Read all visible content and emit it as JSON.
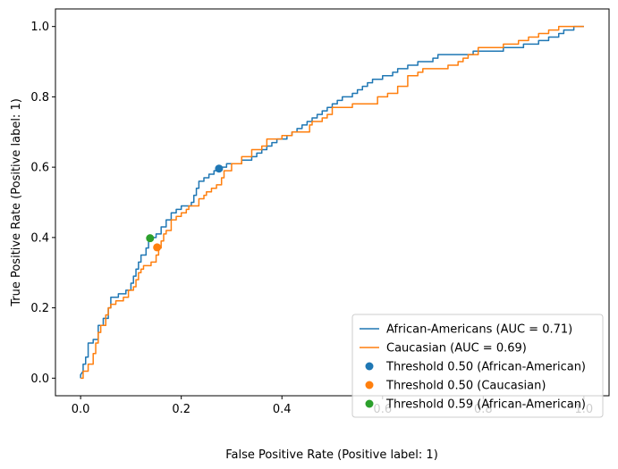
{
  "chart_data": {
    "type": "line",
    "xlabel": "False Positive Rate (Positive label: 1)",
    "ylabel": "True Positive Rate (Positive label: 1)",
    "xlim": [
      -0.05,
      1.05
    ],
    "ylim": [
      -0.05,
      1.05
    ],
    "xticks": [
      "0.0",
      "0.2",
      "0.4",
      "0.6",
      "0.8",
      "1.0"
    ],
    "yticks": [
      "0.0",
      "0.2",
      "0.4",
      "0.6",
      "0.8",
      "1.0"
    ],
    "legend_position": "lower-right",
    "grid": false,
    "series": [
      {
        "name": "African-Americans (AUC = 0.71)",
        "kind": "roc-line",
        "color": "#1f77b4",
        "points": [
          [
            0,
            0
          ],
          [
            0,
            0.01
          ],
          [
            0.005,
            0.02
          ],
          [
            0.005,
            0.04
          ],
          [
            0.01,
            0.04
          ],
          [
            0.01,
            0.06
          ],
          [
            0.015,
            0.06
          ],
          [
            0.015,
            0.1
          ],
          [
            0.025,
            0.1
          ],
          [
            0.025,
            0.11
          ],
          [
            0.035,
            0.11
          ],
          [
            0.035,
            0.15
          ],
          [
            0.045,
            0.15
          ],
          [
            0.045,
            0.17
          ],
          [
            0.055,
            0.17
          ],
          [
            0.055,
            0.2
          ],
          [
            0.06,
            0.2
          ],
          [
            0.06,
            0.23
          ],
          [
            0.075,
            0.23
          ],
          [
            0.075,
            0.24
          ],
          [
            0.09,
            0.24
          ],
          [
            0.09,
            0.25
          ],
          [
            0.1,
            0.25
          ],
          [
            0.1,
            0.27
          ],
          [
            0.105,
            0.27
          ],
          [
            0.105,
            0.29
          ],
          [
            0.11,
            0.29
          ],
          [
            0.11,
            0.31
          ],
          [
            0.115,
            0.31
          ],
          [
            0.115,
            0.33
          ],
          [
            0.12,
            0.33
          ],
          [
            0.12,
            0.35
          ],
          [
            0.13,
            0.35
          ],
          [
            0.13,
            0.37
          ],
          [
            0.135,
            0.37
          ],
          [
            0.135,
            0.39
          ],
          [
            0.14,
            0.39
          ],
          [
            0.14,
            0.4
          ],
          [
            0.15,
            0.4
          ],
          [
            0.15,
            0.41
          ],
          [
            0.16,
            0.41
          ],
          [
            0.16,
            0.43
          ],
          [
            0.17,
            0.43
          ],
          [
            0.17,
            0.45
          ],
          [
            0.18,
            0.45
          ],
          [
            0.18,
            0.47
          ],
          [
            0.19,
            0.47
          ],
          [
            0.19,
            0.48
          ],
          [
            0.2,
            0.48
          ],
          [
            0.2,
            0.49
          ],
          [
            0.22,
            0.49
          ],
          [
            0.22,
            0.5
          ],
          [
            0.225,
            0.5
          ],
          [
            0.225,
            0.52
          ],
          [
            0.23,
            0.52
          ],
          [
            0.23,
            0.54
          ],
          [
            0.235,
            0.54
          ],
          [
            0.235,
            0.56
          ],
          [
            0.245,
            0.56
          ],
          [
            0.245,
            0.57
          ],
          [
            0.255,
            0.57
          ],
          [
            0.255,
            0.58
          ],
          [
            0.265,
            0.58
          ],
          [
            0.265,
            0.59
          ],
          [
            0.275,
            0.59
          ],
          [
            0.275,
            0.6
          ],
          [
            0.29,
            0.6
          ],
          [
            0.29,
            0.61
          ],
          [
            0.32,
            0.61
          ],
          [
            0.32,
            0.62
          ],
          [
            0.34,
            0.62
          ],
          [
            0.34,
            0.63
          ],
          [
            0.35,
            0.63
          ],
          [
            0.35,
            0.64
          ],
          [
            0.36,
            0.64
          ],
          [
            0.36,
            0.65
          ],
          [
            0.37,
            0.65
          ],
          [
            0.37,
            0.66
          ],
          [
            0.38,
            0.66
          ],
          [
            0.38,
            0.67
          ],
          [
            0.39,
            0.67
          ],
          [
            0.39,
            0.68
          ],
          [
            0.41,
            0.68
          ],
          [
            0.41,
            0.69
          ],
          [
            0.42,
            0.69
          ],
          [
            0.42,
            0.7
          ],
          [
            0.43,
            0.7
          ],
          [
            0.43,
            0.71
          ],
          [
            0.44,
            0.71
          ],
          [
            0.44,
            0.72
          ],
          [
            0.45,
            0.72
          ],
          [
            0.45,
            0.73
          ],
          [
            0.46,
            0.73
          ],
          [
            0.46,
            0.74
          ],
          [
            0.47,
            0.74
          ],
          [
            0.47,
            0.75
          ],
          [
            0.48,
            0.75
          ],
          [
            0.48,
            0.76
          ],
          [
            0.49,
            0.76
          ],
          [
            0.49,
            0.77
          ],
          [
            0.5,
            0.77
          ],
          [
            0.5,
            0.78
          ],
          [
            0.51,
            0.78
          ],
          [
            0.51,
            0.79
          ],
          [
            0.52,
            0.79
          ],
          [
            0.52,
            0.8
          ],
          [
            0.54,
            0.8
          ],
          [
            0.54,
            0.81
          ],
          [
            0.55,
            0.81
          ],
          [
            0.55,
            0.82
          ],
          [
            0.56,
            0.82
          ],
          [
            0.56,
            0.83
          ],
          [
            0.57,
            0.83
          ],
          [
            0.57,
            0.84
          ],
          [
            0.58,
            0.84
          ],
          [
            0.58,
            0.85
          ],
          [
            0.6,
            0.85
          ],
          [
            0.6,
            0.86
          ],
          [
            0.62,
            0.86
          ],
          [
            0.62,
            0.87
          ],
          [
            0.63,
            0.87
          ],
          [
            0.63,
            0.88
          ],
          [
            0.65,
            0.88
          ],
          [
            0.65,
            0.89
          ],
          [
            0.67,
            0.89
          ],
          [
            0.67,
            0.9
          ],
          [
            0.7,
            0.9
          ],
          [
            0.7,
            0.91
          ],
          [
            0.71,
            0.91
          ],
          [
            0.71,
            0.92
          ],
          [
            0.78,
            0.92
          ],
          [
            0.78,
            0.93
          ],
          [
            0.84,
            0.93
          ],
          [
            0.84,
            0.94
          ],
          [
            0.88,
            0.94
          ],
          [
            0.88,
            0.95
          ],
          [
            0.91,
            0.95
          ],
          [
            0.91,
            0.96
          ],
          [
            0.93,
            0.96
          ],
          [
            0.93,
            0.97
          ],
          [
            0.95,
            0.97
          ],
          [
            0.95,
            0.98
          ],
          [
            0.96,
            0.98
          ],
          [
            0.96,
            0.99
          ],
          [
            0.98,
            0.99
          ],
          [
            0.98,
            1.0
          ],
          [
            1.0,
            1.0
          ]
        ]
      },
      {
        "name": "Caucasian (AUC = 0.69)",
        "kind": "roc-line",
        "color": "#ff7f0e",
        "points": [
          [
            0,
            0
          ],
          [
            0.005,
            0
          ],
          [
            0.005,
            0.02
          ],
          [
            0.015,
            0.02
          ],
          [
            0.015,
            0.04
          ],
          [
            0.025,
            0.04
          ],
          [
            0.025,
            0.07
          ],
          [
            0.03,
            0.07
          ],
          [
            0.03,
            0.1
          ],
          [
            0.035,
            0.1
          ],
          [
            0.035,
            0.13
          ],
          [
            0.04,
            0.13
          ],
          [
            0.04,
            0.15
          ],
          [
            0.05,
            0.15
          ],
          [
            0.05,
            0.18
          ],
          [
            0.055,
            0.18
          ],
          [
            0.055,
            0.2
          ],
          [
            0.06,
            0.2
          ],
          [
            0.06,
            0.21
          ],
          [
            0.07,
            0.21
          ],
          [
            0.07,
            0.22
          ],
          [
            0.085,
            0.22
          ],
          [
            0.085,
            0.23
          ],
          [
            0.095,
            0.23
          ],
          [
            0.095,
            0.25
          ],
          [
            0.105,
            0.25
          ],
          [
            0.105,
            0.26
          ],
          [
            0.11,
            0.26
          ],
          [
            0.11,
            0.28
          ],
          [
            0.115,
            0.28
          ],
          [
            0.115,
            0.3
          ],
          [
            0.12,
            0.3
          ],
          [
            0.12,
            0.31
          ],
          [
            0.125,
            0.31
          ],
          [
            0.125,
            0.32
          ],
          [
            0.14,
            0.32
          ],
          [
            0.14,
            0.33
          ],
          [
            0.15,
            0.33
          ],
          [
            0.15,
            0.35
          ],
          [
            0.155,
            0.35
          ],
          [
            0.155,
            0.37
          ],
          [
            0.16,
            0.37
          ],
          [
            0.16,
            0.39
          ],
          [
            0.165,
            0.39
          ],
          [
            0.165,
            0.41
          ],
          [
            0.17,
            0.41
          ],
          [
            0.17,
            0.42
          ],
          [
            0.18,
            0.42
          ],
          [
            0.18,
            0.45
          ],
          [
            0.19,
            0.45
          ],
          [
            0.19,
            0.46
          ],
          [
            0.2,
            0.46
          ],
          [
            0.2,
            0.47
          ],
          [
            0.21,
            0.47
          ],
          [
            0.21,
            0.48
          ],
          [
            0.215,
            0.48
          ],
          [
            0.215,
            0.49
          ],
          [
            0.235,
            0.49
          ],
          [
            0.235,
            0.51
          ],
          [
            0.245,
            0.51
          ],
          [
            0.245,
            0.52
          ],
          [
            0.25,
            0.52
          ],
          [
            0.25,
            0.53
          ],
          [
            0.26,
            0.53
          ],
          [
            0.26,
            0.54
          ],
          [
            0.27,
            0.54
          ],
          [
            0.27,
            0.55
          ],
          [
            0.28,
            0.55
          ],
          [
            0.28,
            0.57
          ],
          [
            0.285,
            0.57
          ],
          [
            0.285,
            0.59
          ],
          [
            0.3,
            0.59
          ],
          [
            0.3,
            0.61
          ],
          [
            0.32,
            0.61
          ],
          [
            0.32,
            0.63
          ],
          [
            0.34,
            0.63
          ],
          [
            0.34,
            0.65
          ],
          [
            0.36,
            0.65
          ],
          [
            0.36,
            0.66
          ],
          [
            0.37,
            0.66
          ],
          [
            0.37,
            0.68
          ],
          [
            0.4,
            0.68
          ],
          [
            0.4,
            0.69
          ],
          [
            0.42,
            0.69
          ],
          [
            0.42,
            0.7
          ],
          [
            0.455,
            0.7
          ],
          [
            0.455,
            0.72
          ],
          [
            0.46,
            0.72
          ],
          [
            0.46,
            0.73
          ],
          [
            0.48,
            0.73
          ],
          [
            0.48,
            0.74
          ],
          [
            0.49,
            0.74
          ],
          [
            0.49,
            0.75
          ],
          [
            0.5,
            0.75
          ],
          [
            0.5,
            0.76
          ],
          [
            0.5,
            0.77
          ],
          [
            0.54,
            0.77
          ],
          [
            0.54,
            0.78
          ],
          [
            0.59,
            0.78
          ],
          [
            0.59,
            0.8
          ],
          [
            0.61,
            0.8
          ],
          [
            0.61,
            0.81
          ],
          [
            0.63,
            0.81
          ],
          [
            0.63,
            0.83
          ],
          [
            0.65,
            0.83
          ],
          [
            0.65,
            0.86
          ],
          [
            0.67,
            0.86
          ],
          [
            0.67,
            0.87
          ],
          [
            0.68,
            0.87
          ],
          [
            0.68,
            0.88
          ],
          [
            0.73,
            0.88
          ],
          [
            0.73,
            0.89
          ],
          [
            0.75,
            0.89
          ],
          [
            0.75,
            0.9
          ],
          [
            0.76,
            0.9
          ],
          [
            0.76,
            0.91
          ],
          [
            0.77,
            0.91
          ],
          [
            0.77,
            0.92
          ],
          [
            0.79,
            0.92
          ],
          [
            0.79,
            0.94
          ],
          [
            0.84,
            0.94
          ],
          [
            0.84,
            0.95
          ],
          [
            0.87,
            0.95
          ],
          [
            0.87,
            0.96
          ],
          [
            0.89,
            0.96
          ],
          [
            0.89,
            0.97
          ],
          [
            0.91,
            0.97
          ],
          [
            0.91,
            0.98
          ],
          [
            0.93,
            0.98
          ],
          [
            0.93,
            0.99
          ],
          [
            0.95,
            0.99
          ],
          [
            0.95,
            1.0
          ],
          [
            1.0,
            1.0
          ]
        ]
      },
      {
        "name": "Threshold 0.50 (African-American)",
        "kind": "point",
        "color": "#1f77b4",
        "x": 0.275,
        "y": 0.596
      },
      {
        "name": "Threshold 0.50 (Caucasian)",
        "kind": "point",
        "color": "#ff7f0e",
        "x": 0.152,
        "y": 0.372
      },
      {
        "name": "Threshold 0.59 (African-American)",
        "kind": "point",
        "color": "#2ca02c",
        "x": 0.138,
        "y": 0.398
      }
    ]
  }
}
